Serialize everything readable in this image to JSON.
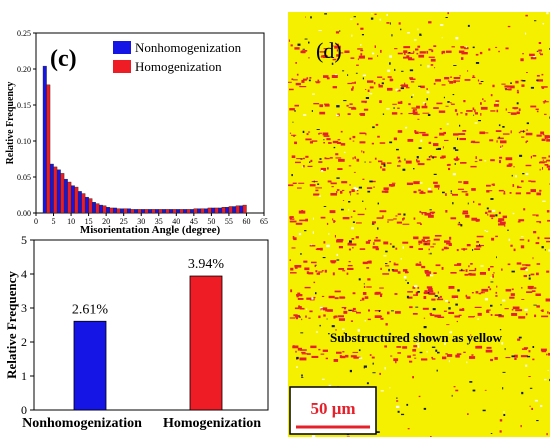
{
  "chart_data": [
    {
      "type": "bar",
      "panel_label": "(c)",
      "xlabel": "Misorientation Angle (degree)",
      "ylabel": "Relative Frequency",
      "xlim": [
        0,
        65
      ],
      "ylim": [
        0,
        0.25
      ],
      "x_ticks": [
        "0",
        "5",
        "10",
        "15",
        "20",
        "25",
        "30",
        "35",
        "40",
        "45",
        "50",
        "55",
        "60",
        "65"
      ],
      "y_ticks": [
        "0.00",
        "0.05",
        "0.10",
        "0.15",
        "0.20",
        "0.25"
      ],
      "x": [
        3,
        5,
        7,
        9,
        11,
        13,
        15,
        17,
        19,
        21,
        23,
        25,
        27,
        29,
        31,
        33,
        35,
        37,
        39,
        41,
        43,
        45,
        47,
        49,
        51,
        53,
        55,
        57,
        59
      ],
      "series": [
        {
          "name": "Nonhomogenization",
          "color": "#1515e6",
          "values": [
            0.204,
            0.068,
            0.06,
            0.047,
            0.038,
            0.03,
            0.022,
            0.015,
            0.011,
            0.008,
            0.007,
            0.006,
            0.006,
            0.005,
            0.005,
            0.005,
            0.005,
            0.005,
            0.005,
            0.005,
            0.005,
            0.005,
            0.006,
            0.006,
            0.007,
            0.007,
            0.008,
            0.009,
            0.01
          ]
        },
        {
          "name": "Homogenization",
          "color": "#ee1c24",
          "values": [
            0.178,
            0.064,
            0.055,
            0.043,
            0.036,
            0.027,
            0.02,
            0.013,
            0.01,
            0.007,
            0.006,
            0.006,
            0.005,
            0.005,
            0.005,
            0.005,
            0.005,
            0.005,
            0.005,
            0.005,
            0.005,
            0.006,
            0.006,
            0.007,
            0.007,
            0.008,
            0.009,
            0.01,
            0.011
          ]
        }
      ],
      "legend": "top-right"
    },
    {
      "type": "bar",
      "ylabel": "Relative Frequency",
      "ylim": [
        0,
        5
      ],
      "y_ticks": [
        "0",
        "1",
        "2",
        "3",
        "4",
        "5"
      ],
      "categories": [
        "Nonhomogenization",
        "Homogenization"
      ],
      "values": [
        2.61,
        3.94
      ],
      "data_labels": [
        "2.61%",
        "3.94%"
      ],
      "colors": [
        "#1515e6",
        "#ee1c24"
      ]
    }
  ],
  "map_panel": {
    "panel_label": "(d)",
    "caption": "Substructured shown as yellow",
    "scale_bar": "50 μm",
    "colors": {
      "background": "#f4f000",
      "recrystallized": "#e6202a",
      "dark": "#1a1a40",
      "white": "#ffffff"
    }
  }
}
